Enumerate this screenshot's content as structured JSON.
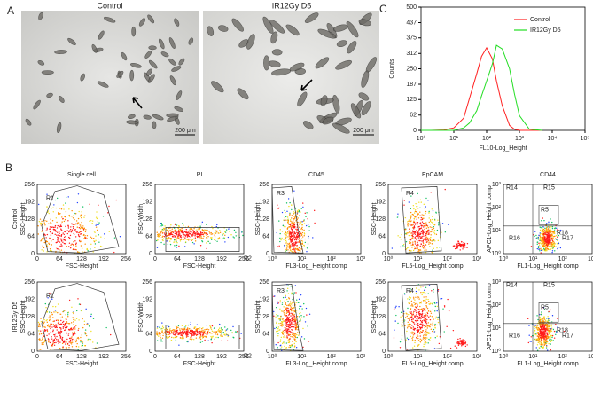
{
  "panel_a": {
    "label": "A",
    "images": [
      {
        "title": "Control",
        "scale_bar": "200 μm"
      },
      {
        "title": "IR12Gy D5",
        "scale_bar": "200 μm"
      }
    ]
  },
  "panel_b": {
    "label": "B",
    "rows": [
      "Control",
      "IR12Gy D5"
    ],
    "linear_ticks": [
      0,
      64,
      128,
      192,
      256
    ],
    "log_ticks": [
      "10⁰",
      "10¹",
      "10²",
      "10³"
    ],
    "columns": [
      {
        "title": "Single cell",
        "x_label": "FSC-Height",
        "y_label": "SSC-Height",
        "x_scale": "linear",
        "y_scale": "linear",
        "gates": [
          "R1"
        ]
      },
      {
        "title": "PI",
        "x_label": "FSC-Height",
        "y_label": "FSC-Width",
        "x_scale": "linear",
        "y_scale": "linear",
        "gates": [
          "R2"
        ]
      },
      {
        "title": "CD45",
        "x_label": "FL3-Log_Height comp",
        "y_label": "SSC-Height",
        "x_scale": "log",
        "y_scale": "linear",
        "gates": [
          "R3"
        ]
      },
      {
        "title": "EpCAM",
        "x_label": "FL5-Log_Height comp",
        "y_label": "SSC-Height",
        "x_scale": "log",
        "y_scale": "linear",
        "gates": [
          "R4"
        ]
      },
      {
        "title": "CD44",
        "x_label": "FL1-Log_Height comp",
        "y_label": "APC1-Log_Height comp",
        "x_scale": "log",
        "y_scale": "log",
        "gates": [
          "R14",
          "R15",
          "R5",
          "R16",
          "R17",
          "R18"
        ]
      }
    ]
  },
  "chart_data": {
    "type": "line",
    "label": "C",
    "x_label": "FL10-Log_Height",
    "y_label": "Counts",
    "log_x": true,
    "legend": "upper right",
    "x": [
      1,
      2,
      5,
      10,
      20,
      30,
      50,
      70,
      100,
      150,
      200,
      300,
      500,
      700,
      1000,
      2000,
      5000
    ],
    "series": [
      {
        "name": "Control",
        "color": "#ff2020",
        "values": [
          0,
          0,
          2,
          10,
          50,
          130,
          230,
          300,
          335,
          290,
          200,
          100,
          20,
          5,
          0,
          0,
          0
        ]
      },
      {
        "name": "IR12Gy D5",
        "color": "#22dd22",
        "values": [
          0,
          0,
          0,
          0,
          10,
          30,
          80,
          140,
          200,
          270,
          345,
          330,
          250,
          150,
          60,
          5,
          0
        ]
      }
    ],
    "xlim": [
      1,
      100000
    ],
    "xticks": [
      {
        "value": 1,
        "label": "10⁰"
      },
      {
        "value": 10,
        "label": "10¹"
      },
      {
        "value": 100,
        "label": "10²"
      },
      {
        "value": 1000,
        "label": "10³"
      },
      {
        "value": 10000,
        "label": "10⁴"
      },
      {
        "value": 100000,
        "label": "10⁵"
      }
    ],
    "ylim": [
      0,
      500
    ],
    "yticks": [
      0,
      62,
      125,
      187,
      250,
      312,
      375,
      437,
      500
    ]
  }
}
